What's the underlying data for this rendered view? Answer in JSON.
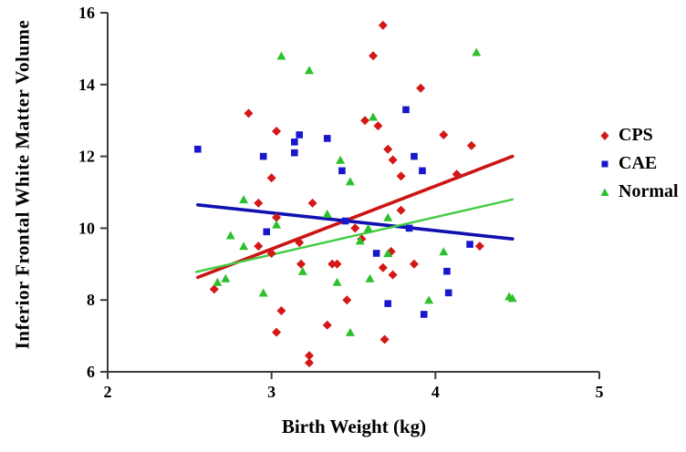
{
  "figure": {
    "background": "#ffffff",
    "axis_color": "#3c3c3c"
  },
  "chart_data": {
    "type": "scatter",
    "title": "",
    "xlabel": "Birth Weight (kg)",
    "ylabel": "Inferior Frontal White Matter Volume",
    "xlim": [
      2,
      5
    ],
    "ylim": [
      6,
      16
    ],
    "x_ticks": [
      "2",
      "3",
      "4",
      "5"
    ],
    "y_ticks": [
      "6",
      "8",
      "10",
      "12",
      "14",
      "16"
    ],
    "grid": false,
    "legend_position": "right",
    "series": [
      {
        "name": "CPS",
        "marker": "diamond",
        "color": "#d41717",
        "trend_line": {
          "x1": 2.55,
          "y1": 8.63,
          "x2": 4.47,
          "y2": 12.0,
          "color": "#cc1414",
          "width": 3.6
        },
        "points": [
          [
            2.65,
            8.3
          ],
          [
            2.86,
            13.2
          ],
          [
            2.92,
            10.7
          ],
          [
            2.92,
            9.5
          ],
          [
            3.0,
            11.4
          ],
          [
            3.0,
            9.3
          ],
          [
            3.03,
            12.7
          ],
          [
            3.03,
            10.3
          ],
          [
            3.03,
            7.1
          ],
          [
            3.06,
            7.7
          ],
          [
            3.17,
            9.6
          ],
          [
            3.18,
            9.0
          ],
          [
            3.23,
            6.45
          ],
          [
            3.23,
            6.25
          ],
          [
            3.25,
            10.7
          ],
          [
            3.34,
            7.3
          ],
          [
            3.37,
            9.0
          ],
          [
            3.4,
            9.0
          ],
          [
            3.46,
            8.0
          ],
          [
            3.51,
            10.0
          ],
          [
            3.55,
            9.7
          ],
          [
            3.57,
            13.0
          ],
          [
            3.62,
            14.8
          ],
          [
            3.65,
            12.85
          ],
          [
            3.68,
            15.65
          ],
          [
            3.68,
            8.9
          ],
          [
            3.69,
            6.9
          ],
          [
            3.71,
            12.2
          ],
          [
            3.73,
            9.35
          ],
          [
            3.74,
            11.9
          ],
          [
            3.74,
            8.7
          ],
          [
            3.79,
            11.45
          ],
          [
            3.79,
            10.5
          ],
          [
            3.87,
            9.0
          ],
          [
            3.91,
            13.9
          ],
          [
            4.05,
            12.6
          ],
          [
            4.13,
            11.5
          ],
          [
            4.22,
            12.3
          ],
          [
            4.27,
            9.5
          ]
        ]
      },
      {
        "name": "CAE",
        "marker": "square",
        "color": "#1717cc",
        "trend_line": {
          "x1": 2.55,
          "y1": 10.65,
          "x2": 4.47,
          "y2": 9.7,
          "color": "#1111b0",
          "width": 3.6
        },
        "points": [
          [
            2.55,
            12.2
          ],
          [
            2.95,
            12.0
          ],
          [
            2.97,
            9.9
          ],
          [
            3.14,
            12.4
          ],
          [
            3.14,
            12.1
          ],
          [
            3.17,
            12.6
          ],
          [
            3.34,
            12.5
          ],
          [
            3.43,
            11.6
          ],
          [
            3.45,
            10.2
          ],
          [
            3.64,
            9.3
          ],
          [
            3.71,
            7.9
          ],
          [
            3.82,
            13.3
          ],
          [
            3.84,
            10.0
          ],
          [
            3.87,
            12.0
          ],
          [
            3.92,
            11.6
          ],
          [
            3.93,
            7.6
          ],
          [
            4.07,
            8.8
          ],
          [
            4.08,
            8.2
          ],
          [
            4.21,
            9.55
          ]
        ]
      },
      {
        "name": "Normal",
        "marker": "triangle",
        "color": "#2cc12c",
        "trend_line": {
          "x1": 2.54,
          "y1": 8.78,
          "x2": 4.47,
          "y2": 10.8,
          "color": "#42cc42",
          "width": 2.4
        },
        "points": [
          [
            2.67,
            8.5
          ],
          [
            2.72,
            8.6
          ],
          [
            2.75,
            9.8
          ],
          [
            2.83,
            10.8
          ],
          [
            2.83,
            9.5
          ],
          [
            2.95,
            8.2
          ],
          [
            3.03,
            10.1
          ],
          [
            3.06,
            14.8
          ],
          [
            3.19,
            8.8
          ],
          [
            3.23,
            14.4
          ],
          [
            3.34,
            10.4
          ],
          [
            3.4,
            8.5
          ],
          [
            3.42,
            11.9
          ],
          [
            3.48,
            11.3
          ],
          [
            3.48,
            7.1
          ],
          [
            3.54,
            9.65
          ],
          [
            3.59,
            10.0
          ],
          [
            3.6,
            8.6
          ],
          [
            3.62,
            13.1
          ],
          [
            3.71,
            10.3
          ],
          [
            3.71,
            9.3
          ],
          [
            3.96,
            8.0
          ],
          [
            4.05,
            9.35
          ],
          [
            4.25,
            14.9
          ],
          [
            4.45,
            8.1
          ],
          [
            4.47,
            8.05
          ]
        ]
      }
    ]
  }
}
